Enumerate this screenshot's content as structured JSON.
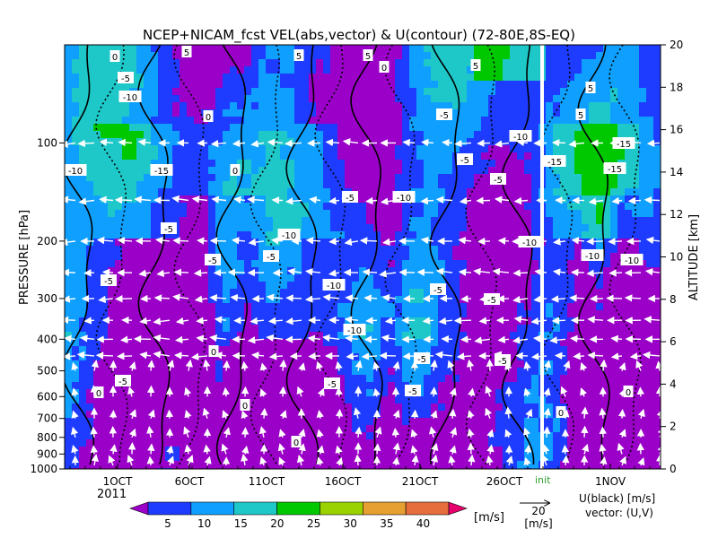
{
  "chart_data": {
    "type": "heatmap",
    "title": "NCEP+NICAM_fcst VEL(abs,vector) & U(contour)   (72-80E,8S-EQ)",
    "ylabel_left": "PRESSURE [hPa]",
    "ylabel_right": "ALTITUDE [km]",
    "pressure_ticks": [
      "100",
      "200",
      "300",
      "400",
      "500",
      "600",
      "700",
      "800",
      "900",
      "1000"
    ],
    "altitude_ticks": [
      "0",
      "2",
      "4",
      "6",
      "8",
      "10",
      "12",
      "14",
      "16",
      "18",
      "20"
    ],
    "date_ticks": [
      "1OCT",
      "6OCT",
      "11OCT",
      "16OCT",
      "21OCT",
      "26OCT",
      "1NOV"
    ],
    "year_label": "2011",
    "init_label": "init",
    "colorbar": {
      "levels": [
        "5",
        "10",
        "15",
        "20",
        "25",
        "30",
        "35",
        "40"
      ],
      "unit": "[m/s]",
      "colors": [
        "#9b00c8",
        "#1e3cff",
        "#0fa0ff",
        "#1ec8c8",
        "#00c800",
        "#9ad200",
        "#e6a032",
        "#e66e3c",
        "#e6006e"
      ]
    },
    "vector_key": {
      "value": "20",
      "unit": "[m/s]"
    },
    "legend": {
      "line1": "U(black) [m/s]",
      "line2": "vector: (U,V)"
    },
    "contour_labels": [
      "0",
      "5",
      "-5",
      "-10",
      "-15"
    ]
  }
}
